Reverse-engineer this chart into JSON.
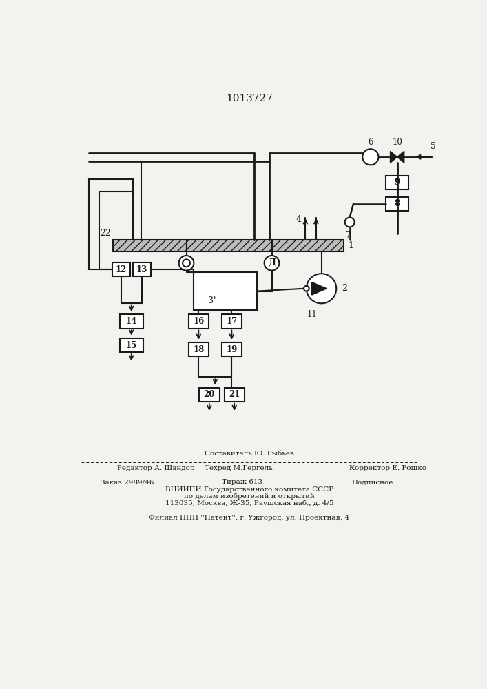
{
  "title": "1013727",
  "bg_color": "#f2f2ee",
  "line_color": "#1a1a1a",
  "box_color": "#ffffff",
  "editor": "Редактор А. Шандор",
  "composer": "Составитель Ю. Рыбьев",
  "techred": "Техред М.Гергель",
  "corrector": "Корректор Е. Рошко",
  "order": "Заказ 2989/46",
  "tirazh": "Тираж 613",
  "podpisnoe": "Подписное",
  "vniip1": "ВНИИПИ Государственного комитета СССР",
  "vniip2": "по делам изобретений и открытий",
  "vniip3": "113035, Москва, Ж-35, Раушская наб., д. 4/5",
  "filial": "Филиал ППП ''Патент'', г. Ужгород, ул. Проектная, 4"
}
